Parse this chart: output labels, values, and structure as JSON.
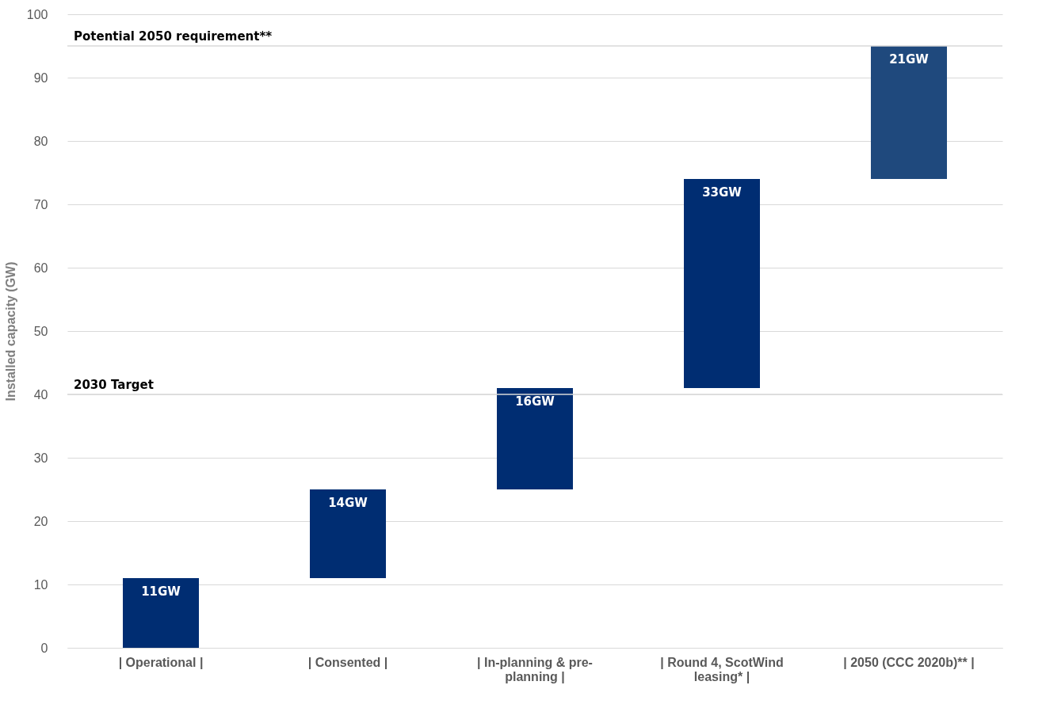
{
  "chart_data": {
    "type": "bar",
    "ylabel": "Installed capacity (GW)",
    "categories": [
      "| Operational |",
      "| Consented |",
      "| In-planning & pre-planning |",
      "| Round 4, ScotWind leasing* |",
      "| 2050 (CCC 2020b)** |"
    ],
    "base": [
      0,
      11,
      25,
      41,
      74
    ],
    "values": [
      11,
      14,
      16,
      33,
      21
    ],
    "colors": [
      "#002d72",
      "#002d72",
      "#002d72",
      "#002d72",
      "#1f497d"
    ],
    "value_labels": [
      "11GW",
      "14GW",
      "16GW",
      "33GW",
      "21GW"
    ],
    "ylim": [
      0,
      100
    ],
    "yticks": [
      0,
      10,
      20,
      30,
      40,
      50,
      60,
      70,
      80,
      90,
      100
    ],
    "grid": "y",
    "ref_lines": [
      {
        "axis": "y",
        "value": 40,
        "label": "2030 Target",
        "color": "#d9d9d9"
      },
      {
        "axis": "y",
        "value": 95,
        "label": "Potential 2050 requirement**",
        "color": "#d9d9d9"
      }
    ]
  }
}
